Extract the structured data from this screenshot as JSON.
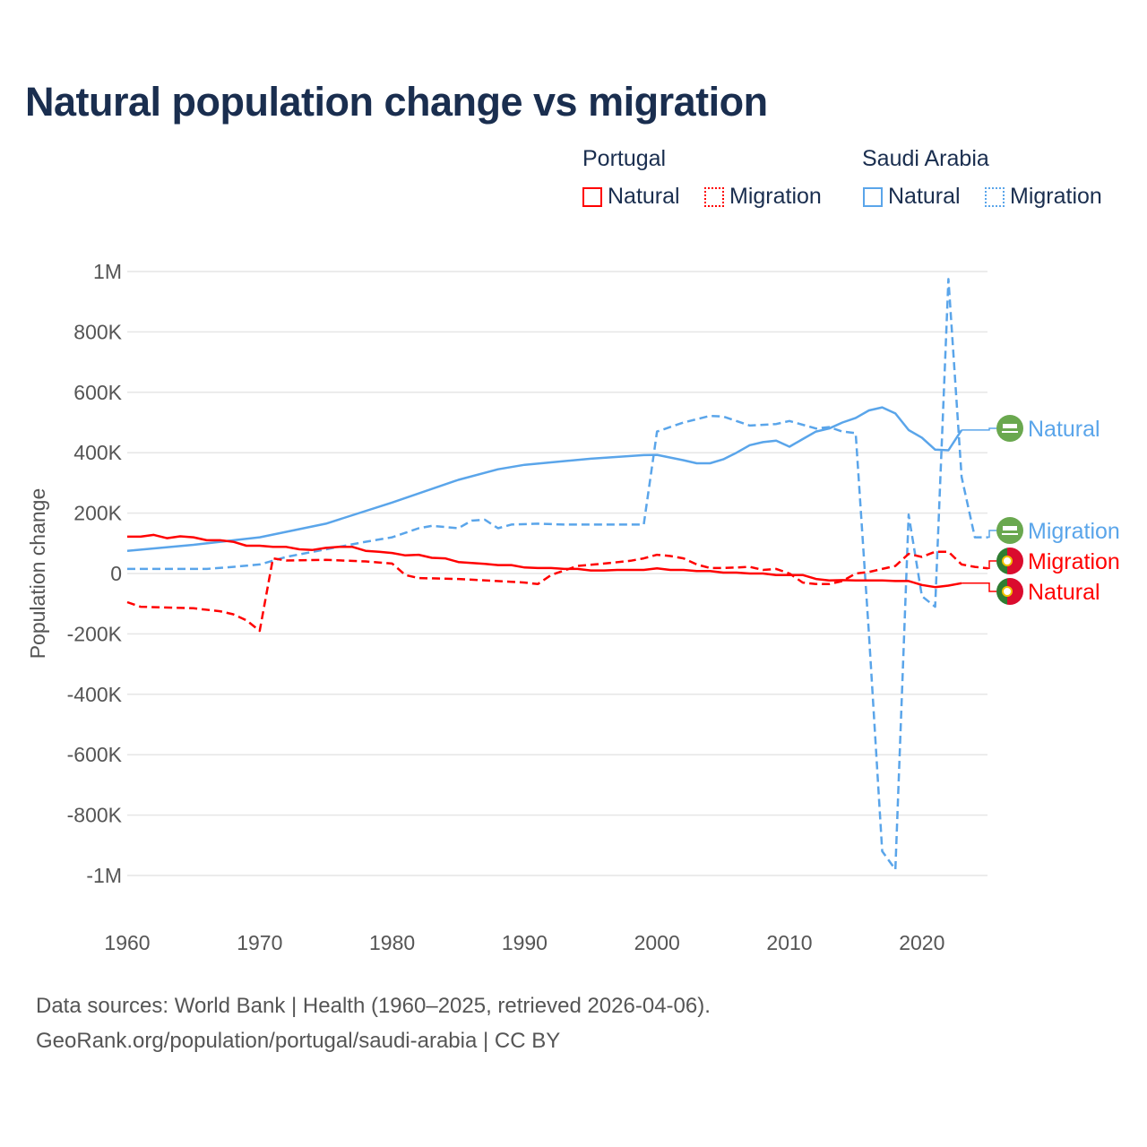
{
  "title": "Natural population change vs migration",
  "legend": {
    "groups": [
      {
        "name": "Portugal",
        "color": "#ff0000",
        "items": [
          "Natural",
          "Migration"
        ]
      },
      {
        "name": "Saudi Arabia",
        "color": "#5aa5ea",
        "items": [
          "Natural",
          "Migration"
        ]
      }
    ]
  },
  "end_labels": [
    {
      "text": "Natural",
      "color": "#5aa5ea",
      "flag": "saudi-arabia"
    },
    {
      "text": "Migration",
      "color": "#5aa5ea",
      "flag": "saudi-arabia"
    },
    {
      "text": "Migration",
      "color": "#ff0000",
      "flag": "portugal"
    },
    {
      "text": "Natural",
      "color": "#ff0000",
      "flag": "portugal"
    }
  ],
  "footer": {
    "line1": "Data sources: World Bank | Health (1960–2025, retrieved 2026-04-06).",
    "line2": "GeoRank.org/population/portugal/saudi-arabia | CC BY"
  },
  "chart_data": {
    "type": "line",
    "title": "Natural population change vs migration",
    "xlabel": "",
    "ylabel": "Population change",
    "xlim": [
      1960,
      2025
    ],
    "ylim": [
      -1000000,
      1000000
    ],
    "x_ticks": [
      1960,
      1970,
      1980,
      1990,
      2000,
      2010,
      2020
    ],
    "x_tick_labels": [
      "1960",
      "1970",
      "1980",
      "1990",
      "2000",
      "2010",
      "2020"
    ],
    "y_ticks": [
      1000000,
      800000,
      600000,
      400000,
      200000,
      0,
      -200000,
      -400000,
      -600000,
      -800000,
      -1000000
    ],
    "y_tick_labels": [
      "1M",
      "800K",
      "600K",
      "400K",
      "200K",
      "0",
      "-200K",
      "-400K",
      "-600K",
      "-800K",
      "-1M"
    ],
    "grid": true,
    "legend_position": "top-right",
    "series": [
      {
        "name": "Saudi Arabia Natural",
        "color": "#5aa5ea",
        "dash": false,
        "points": [
          [
            1960,
            75000
          ],
          [
            1965,
            95000
          ],
          [
            1970,
            120000
          ],
          [
            1975,
            165000
          ],
          [
            1980,
            235000
          ],
          [
            1985,
            310000
          ],
          [
            1988,
            345000
          ],
          [
            1990,
            360000
          ],
          [
            1995,
            380000
          ],
          [
            1999,
            392000
          ],
          [
            2000,
            393000
          ],
          [
            2002,
            375000
          ],
          [
            2003,
            365000
          ],
          [
            2004,
            365000
          ],
          [
            2005,
            378000
          ],
          [
            2006,
            400000
          ],
          [
            2007,
            425000
          ],
          [
            2008,
            435000
          ],
          [
            2009,
            440000
          ],
          [
            2010,
            420000
          ],
          [
            2011,
            445000
          ],
          [
            2012,
            470000
          ],
          [
            2013,
            480000
          ],
          [
            2014,
            500000
          ],
          [
            2015,
            515000
          ],
          [
            2016,
            540000
          ],
          [
            2017,
            550000
          ],
          [
            2018,
            530000
          ],
          [
            2019,
            475000
          ],
          [
            2020,
            450000
          ],
          [
            2021,
            410000
          ],
          [
            2022,
            408000
          ],
          [
            2023,
            475000
          ]
        ]
      },
      {
        "name": "Saudi Arabia Migration",
        "color": "#5aa5ea",
        "dash": true,
        "points": [
          [
            1960,
            15000
          ],
          [
            1966,
            15000
          ],
          [
            1968,
            22000
          ],
          [
            1970,
            30000
          ],
          [
            1972,
            55000
          ],
          [
            1975,
            80000
          ],
          [
            1978,
            105000
          ],
          [
            1980,
            120000
          ],
          [
            1982,
            150000
          ],
          [
            1983,
            158000
          ],
          [
            1985,
            150000
          ],
          [
            1986,
            175000
          ],
          [
            1987,
            178000
          ],
          [
            1988,
            150000
          ],
          [
            1989,
            162000
          ],
          [
            1991,
            165000
          ],
          [
            1993,
            162000
          ],
          [
            1999,
            162000
          ],
          [
            2000,
            470000
          ],
          [
            2002,
            500000
          ],
          [
            2004,
            522000
          ],
          [
            2005,
            520000
          ],
          [
            2007,
            490000
          ],
          [
            2009,
            495000
          ],
          [
            2010,
            505000
          ],
          [
            2012,
            480000
          ],
          [
            2013,
            485000
          ],
          [
            2014,
            470000
          ],
          [
            2015,
            465000
          ],
          [
            2016,
            -200000
          ],
          [
            2017,
            -920000
          ],
          [
            2018,
            -980000
          ],
          [
            2019,
            195000
          ],
          [
            2020,
            -75000
          ],
          [
            2021,
            -110000
          ],
          [
            2022,
            975000
          ],
          [
            2023,
            320000
          ],
          [
            2024,
            120000
          ],
          [
            2025,
            120000
          ]
        ]
      },
      {
        "name": "Portugal Natural",
        "color": "#ff0000",
        "dash": false,
        "points": [
          [
            1960,
            122000
          ],
          [
            1961,
            122000
          ],
          [
            1962,
            128000
          ],
          [
            1963,
            117000
          ],
          [
            1964,
            123000
          ],
          [
            1965,
            120000
          ],
          [
            1966,
            110000
          ],
          [
            1967,
            110000
          ],
          [
            1968,
            105000
          ],
          [
            1969,
            92000
          ],
          [
            1970,
            92000
          ],
          [
            1971,
            88000
          ],
          [
            1972,
            88000
          ],
          [
            1973,
            80000
          ],
          [
            1974,
            78000
          ],
          [
            1975,
            85000
          ],
          [
            1976,
            88000
          ],
          [
            1977,
            88000
          ],
          [
            1978,
            75000
          ],
          [
            1979,
            72000
          ],
          [
            1980,
            68000
          ],
          [
            1981,
            60000
          ],
          [
            1982,
            62000
          ],
          [
            1983,
            52000
          ],
          [
            1984,
            50000
          ],
          [
            1985,
            38000
          ],
          [
            1986,
            35000
          ],
          [
            1987,
            32000
          ],
          [
            1988,
            28000
          ],
          [
            1989,
            28000
          ],
          [
            1990,
            20000
          ],
          [
            1991,
            18000
          ],
          [
            1992,
            18000
          ],
          [
            1993,
            15000
          ],
          [
            1994,
            15000
          ],
          [
            1995,
            10000
          ],
          [
            1996,
            10000
          ],
          [
            1997,
            12000
          ],
          [
            1998,
            12000
          ],
          [
            1999,
            12000
          ],
          [
            2000,
            17000
          ],
          [
            2001,
            12000
          ],
          [
            2002,
            12000
          ],
          [
            2003,
            8000
          ],
          [
            2004,
            8000
          ],
          [
            2005,
            3000
          ],
          [
            2006,
            3000
          ],
          [
            2007,
            0
          ],
          [
            2008,
            0
          ],
          [
            2009,
            -5000
          ],
          [
            2010,
            -5000
          ],
          [
            2011,
            -5000
          ],
          [
            2012,
            -18000
          ],
          [
            2013,
            -23000
          ],
          [
            2014,
            -22000
          ],
          [
            2015,
            -23000
          ],
          [
            2016,
            -23000
          ],
          [
            2017,
            -23000
          ],
          [
            2018,
            -25000
          ],
          [
            2019,
            -25000
          ],
          [
            2020,
            -38000
          ],
          [
            2021,
            -45000
          ],
          [
            2022,
            -40000
          ],
          [
            2023,
            -32000
          ]
        ]
      },
      {
        "name": "Portugal Migration",
        "color": "#ff0000",
        "dash": true,
        "points": [
          [
            1960,
            -95000
          ],
          [
            1961,
            -110000
          ],
          [
            1965,
            -115000
          ],
          [
            1967,
            -125000
          ],
          [
            1968,
            -135000
          ],
          [
            1969,
            -155000
          ],
          [
            1970,
            -190000
          ],
          [
            1971,
            50000
          ],
          [
            1972,
            43000
          ],
          [
            1975,
            45000
          ],
          [
            1978,
            40000
          ],
          [
            1980,
            33000
          ],
          [
            1981,
            -5000
          ],
          [
            1982,
            -15000
          ],
          [
            1985,
            -18000
          ],
          [
            1990,
            -30000
          ],
          [
            1991,
            -35000
          ],
          [
            1992,
            -5000
          ],
          [
            1993,
            10000
          ],
          [
            1994,
            25000
          ],
          [
            1996,
            33000
          ],
          [
            1998,
            42000
          ],
          [
            1999,
            50000
          ],
          [
            2000,
            62000
          ],
          [
            2001,
            58000
          ],
          [
            2002,
            50000
          ],
          [
            2003,
            30000
          ],
          [
            2004,
            18000
          ],
          [
            2005,
            18000
          ],
          [
            2006,
            20000
          ],
          [
            2007,
            22000
          ],
          [
            2008,
            12000
          ],
          [
            2009,
            15000
          ],
          [
            2010,
            0
          ],
          [
            2011,
            -30000
          ],
          [
            2012,
            -35000
          ],
          [
            2013,
            -35000
          ],
          [
            2014,
            -25000
          ],
          [
            2015,
            0
          ],
          [
            2016,
            5000
          ],
          [
            2017,
            15000
          ],
          [
            2018,
            25000
          ],
          [
            2019,
            65000
          ],
          [
            2020,
            55000
          ],
          [
            2021,
            72000
          ],
          [
            2022,
            72000
          ],
          [
            2023,
            30000
          ],
          [
            2024,
            22000
          ],
          [
            2025,
            17000
          ]
        ]
      }
    ]
  }
}
